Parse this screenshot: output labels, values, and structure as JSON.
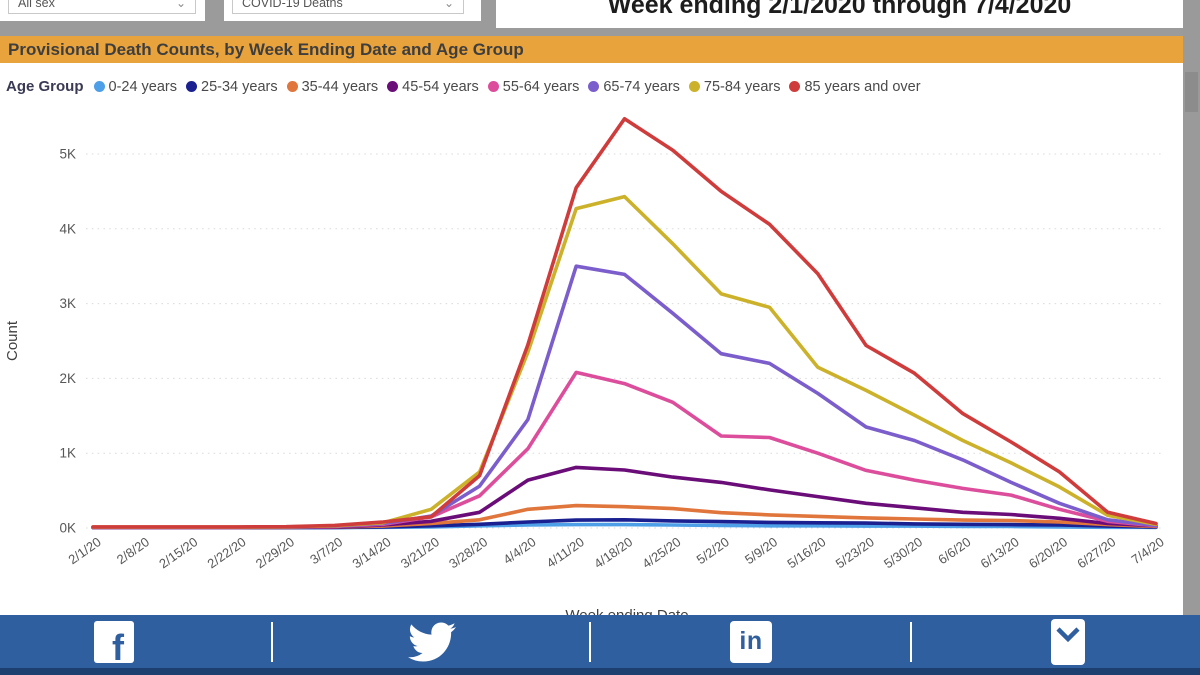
{
  "header": {
    "sex_filter": {
      "value": "All sex",
      "caret": "⌄"
    },
    "indicator_filter": {
      "value": "COVID-19 Deaths",
      "caret": "⌄"
    },
    "date_range_title": "Week ending 2/1/2020 through 7/4/2020"
  },
  "banner": {
    "title": "Provisional Death Counts, by Week Ending Date and Age Group"
  },
  "chart_data": {
    "type": "line",
    "title": "Provisional Death Counts, by Week Ending Date and Age Group",
    "xlabel": "Week ending Date",
    "ylabel": "Count",
    "legend_title": "Age Group",
    "legend_position": "top",
    "grid": "dotted-horizontal",
    "ylim": [
      0,
      5600
    ],
    "y_ticks": [
      "0K",
      "1K",
      "2K",
      "3K",
      "4K",
      "5K"
    ],
    "x": [
      "2/1/20",
      "2/8/20",
      "2/15/20",
      "2/22/20",
      "2/29/20",
      "3/7/20",
      "3/14/20",
      "3/21/20",
      "3/28/20",
      "4/4/20",
      "4/11/20",
      "4/18/20",
      "4/25/20",
      "5/2/20",
      "5/9/20",
      "5/16/20",
      "5/23/20",
      "5/30/20",
      "6/6/20",
      "6/13/20",
      "6/20/20",
      "6/27/20",
      "7/4/20"
    ],
    "series": [
      {
        "name": "0-24 years",
        "color": "#4D9FE8",
        "values": [
          5,
          5,
          5,
          5,
          5,
          5,
          10,
          15,
          30,
          40,
          45,
          45,
          40,
          35,
          30,
          30,
          25,
          25,
          20,
          20,
          15,
          10,
          8
        ]
      },
      {
        "name": "25-34 years",
        "color": "#1A2090",
        "values": [
          5,
          5,
          5,
          5,
          5,
          8,
          15,
          30,
          50,
          80,
          105,
          110,
          95,
          85,
          75,
          70,
          65,
          55,
          50,
          45,
          40,
          25,
          12
        ]
      },
      {
        "name": "35-44 years",
        "color": "#E0763C",
        "values": [
          8,
          8,
          8,
          8,
          10,
          12,
          25,
          60,
          110,
          250,
          300,
          285,
          260,
          205,
          175,
          155,
          135,
          120,
          105,
          100,
          80,
          45,
          20
        ]
      },
      {
        "name": "45-54 years",
        "color": "#6B0D79",
        "values": [
          8,
          8,
          8,
          8,
          10,
          15,
          40,
          90,
          210,
          640,
          810,
          775,
          680,
          610,
          510,
          420,
          330,
          270,
          210,
          180,
          130,
          60,
          30
        ]
      },
      {
        "name": "55-64 years",
        "color": "#DC4E9B",
        "values": [
          10,
          10,
          10,
          10,
          12,
          20,
          50,
          150,
          430,
          1060,
          2080,
          1930,
          1680,
          1230,
          1210,
          1000,
          770,
          640,
          530,
          440,
          250,
          90,
          30
        ]
      },
      {
        "name": "65-74 years",
        "color": "#7B5ECB",
        "values": [
          10,
          10,
          10,
          10,
          12,
          25,
          60,
          160,
          560,
          1450,
          3500,
          3390,
          2870,
          2330,
          2200,
          1800,
          1350,
          1170,
          910,
          610,
          330,
          110,
          35
        ]
      },
      {
        "name": "75-84 years",
        "color": "#CBB22A",
        "values": [
          12,
          12,
          12,
          12,
          15,
          30,
          70,
          250,
          750,
          2350,
          4270,
          4430,
          3800,
          3130,
          2950,
          2150,
          1840,
          1510,
          1170,
          870,
          550,
          170,
          50
        ]
      },
      {
        "name": "85 years and over",
        "color": "#CF3C3C",
        "values": [
          15,
          15,
          15,
          15,
          18,
          35,
          80,
          150,
          700,
          2450,
          4550,
          5470,
          5050,
          4500,
          4060,
          3400,
          2440,
          2070,
          1530,
          1150,
          750,
          210,
          60
        ]
      }
    ]
  },
  "colors": {
    "banner_bg": "#E8A33C",
    "footer_bg": "#2F5F9F",
    "footer_strip": "#1D3F70",
    "page_bg": "#9B9B9B",
    "grid_line": "#DCDCDC"
  },
  "footer": {
    "icons": [
      {
        "name": "facebook",
        "glyph": "f"
      },
      {
        "name": "twitter",
        "glyph": ""
      },
      {
        "name": "linkedin",
        "glyph": "in"
      },
      {
        "name": "email",
        "glyph": ""
      }
    ]
  }
}
